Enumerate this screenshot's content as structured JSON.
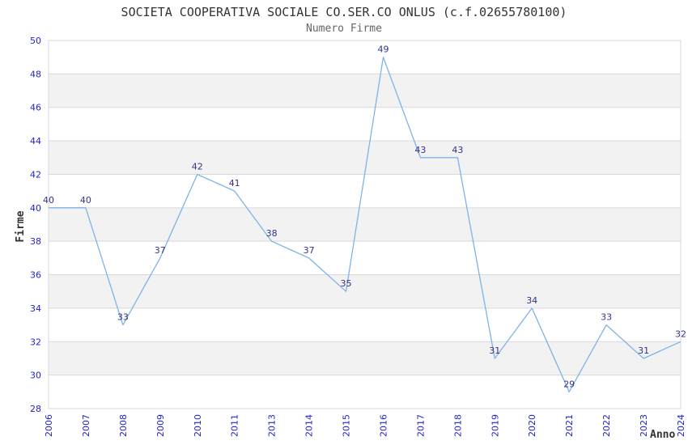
{
  "title": "SOCIETA COOPERATIVA SOCIALE CO.SER.CO ONLUS (c.f.02655780100)",
  "subtitle": "Numero Firme",
  "chart_data": {
    "type": "line",
    "title": "SOCIETA COOPERATIVA SOCIALE CO.SER.CO ONLUS (c.f.02655780100)",
    "subtitle": "Numero Firme",
    "xlabel": "Anno",
    "ylabel": "Firme",
    "categories": [
      "2006",
      "2007",
      "2008",
      "2009",
      "2010",
      "2011",
      "2013",
      "2014",
      "2015",
      "2016",
      "2017",
      "2018",
      "2019",
      "2020",
      "2021",
      "2022",
      "2023",
      "2024"
    ],
    "values": [
      40,
      40,
      33,
      37,
      42,
      41,
      38,
      37,
      35,
      49,
      43,
      43,
      31,
      34,
      29,
      33,
      31,
      32
    ],
    "ylim": [
      28,
      50
    ],
    "ytick_step": 2,
    "grid": "horizontal",
    "alternating_bands": true,
    "data_labels": true,
    "legend": "none",
    "markers": "none"
  },
  "colors": {
    "line": "#7db3e8",
    "tick_label": "#2323cc",
    "data_label": "#333388",
    "band": "#f2f2f2",
    "grid": "#d9d9d9",
    "title": "#333333",
    "subtitle": "#666666",
    "axis_title": "#333333",
    "background": "#ffffff"
  }
}
